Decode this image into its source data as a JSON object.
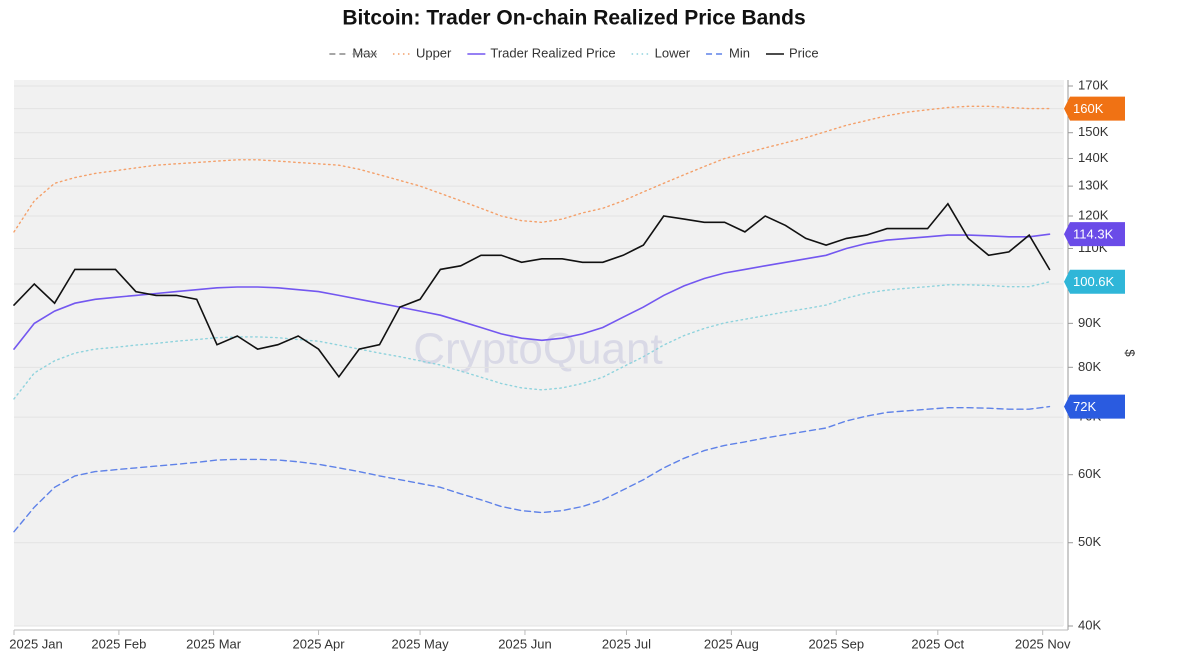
{
  "chart_data": {
    "type": "line",
    "title": "Bitcoin: Trader On-chain Realized Price Bands",
    "watermark": "CryptoQuant",
    "y_label": "$",
    "log_y": true,
    "grid": true,
    "x": [
      0,
      6,
      12,
      18,
      24,
      30,
      36,
      42,
      48,
      54,
      60,
      66,
      72,
      78,
      84,
      90,
      96,
      102,
      108,
      114,
      120,
      126,
      132,
      138,
      144,
      150,
      156,
      162,
      168,
      174,
      180,
      186,
      192,
      198,
      204,
      210,
      216,
      222,
      228,
      234,
      240,
      246,
      252,
      258,
      264,
      270,
      276,
      282,
      288,
      294,
      300,
      306
    ],
    "xlim": [
      0,
      310
    ],
    "xticks": [
      {
        "value": 0,
        "label": "2025 Jan"
      },
      {
        "value": 31,
        "label": "2025 Feb"
      },
      {
        "value": 59,
        "label": "2025 Mar"
      },
      {
        "value": 90,
        "label": "2025 Apr"
      },
      {
        "value": 120,
        "label": "2025 May"
      },
      {
        "value": 151,
        "label": "2025 Jun"
      },
      {
        "value": 181,
        "label": "2025 Jul"
      },
      {
        "value": 212,
        "label": "2025 Aug"
      },
      {
        "value": 243,
        "label": "2025 Sep"
      },
      {
        "value": 273,
        "label": "2025 Oct"
      },
      {
        "value": 304,
        "label": "2025 Nov"
      }
    ],
    "ylim": [
      40000,
      170000
    ],
    "yticks": [
      {
        "value": 40000,
        "label": "40K"
      },
      {
        "value": 50000,
        "label": "50K"
      },
      {
        "value": 60000,
        "label": "60K"
      },
      {
        "value": 70000,
        "label": "70K"
      },
      {
        "value": 80000,
        "label": "80K"
      },
      {
        "value": 90000,
        "label": "90K"
      },
      {
        "value": 100000,
        "label": "100K"
      },
      {
        "value": 110000,
        "label": "110K"
      },
      {
        "value": 120000,
        "label": "120K"
      },
      {
        "value": 130000,
        "label": "130K"
      },
      {
        "value": 140000,
        "label": "140K"
      },
      {
        "value": 150000,
        "label": "150K"
      },
      {
        "value": 160000,
        "label": "160K"
      },
      {
        "value": 170000,
        "label": "170K"
      }
    ],
    "series": [
      {
        "name": "Max",
        "color": "#888888",
        "dash": "dashed",
        "hidden": true
      },
      {
        "name": "Upper",
        "color": "#f4a06a",
        "dash": "dotted",
        "badge_color": "#f07214",
        "values": [
          115000,
          125000,
          131000,
          133000,
          134500,
          135500,
          136500,
          137500,
          138000,
          138500,
          139000,
          139500,
          139500,
          139000,
          138500,
          138000,
          137500,
          136000,
          134000,
          132000,
          130000,
          127500,
          125000,
          122500,
          120000,
          118500,
          118000,
          119000,
          121000,
          122500,
          125000,
          128000,
          131000,
          134000,
          137000,
          140000,
          142000,
          144000,
          146000,
          148000,
          150500,
          153000,
          155000,
          157000,
          158500,
          159500,
          160500,
          161000,
          161000,
          160500,
          160000,
          160000
        ],
        "value_labels": [
          null,
          null,
          null,
          null,
          null,
          null,
          null,
          null,
          null,
          null,
          null,
          null,
          null,
          null,
          null,
          null,
          null,
          null,
          null,
          null,
          null,
          null,
          null,
          null,
          null,
          null,
          null,
          null,
          null,
          null,
          null,
          null,
          null,
          null,
          null,
          null,
          null,
          null,
          null,
          null,
          null,
          null,
          null,
          null,
          null,
          null,
          null,
          null,
          null,
          null,
          null,
          "160K"
        ]
      },
      {
        "name": "Trader Realized Price",
        "color": "#7357f0",
        "dash": "solid",
        "badge_color": "#6a4be8",
        "values": [
          84000,
          90000,
          93000,
          95000,
          96000,
          96500,
          97000,
          97500,
          98000,
          98500,
          99000,
          99200,
          99200,
          99000,
          98500,
          98000,
          97000,
          96000,
          95000,
          94000,
          93000,
          92000,
          90500,
          89000,
          87500,
          86500,
          86000,
          86500,
          87500,
          89000,
          91500,
          94000,
          97000,
          99500,
          101500,
          103000,
          104000,
          105000,
          106000,
          107000,
          108000,
          110000,
          111500,
          112500,
          113000,
          113500,
          114000,
          114000,
          113800,
          113500,
          113500,
          114300
        ],
        "value_labels": [
          null,
          null,
          null,
          null,
          null,
          null,
          null,
          null,
          null,
          null,
          null,
          null,
          null,
          null,
          null,
          null,
          null,
          null,
          null,
          null,
          null,
          null,
          null,
          null,
          null,
          null,
          null,
          null,
          null,
          null,
          null,
          null,
          null,
          null,
          null,
          null,
          null,
          null,
          null,
          null,
          null,
          null,
          null,
          null,
          null,
          null,
          null,
          null,
          null,
          null,
          null,
          "114.3K"
        ]
      },
      {
        "name": "Lower",
        "color": "#8fd3dd",
        "dash": "dotted",
        "badge_color": "#2fb6d8",
        "values": [
          73500,
          78800,
          81400,
          83100,
          84000,
          84400,
          84900,
          85300,
          85800,
          86200,
          86600,
          86800,
          86800,
          86600,
          86200,
          85800,
          84900,
          84000,
          83100,
          82300,
          81400,
          80500,
          79200,
          77900,
          76600,
          75700,
          75300,
          75700,
          76600,
          77900,
          80100,
          82300,
          84900,
          87100,
          88800,
          90100,
          91000,
          91900,
          92800,
          93600,
          94500,
          96300,
          97600,
          98400,
          98900,
          99300,
          99800,
          99800,
          99600,
          99300,
          99300,
          100600
        ],
        "value_labels": [
          null,
          null,
          null,
          null,
          null,
          null,
          null,
          null,
          null,
          null,
          null,
          null,
          null,
          null,
          null,
          null,
          null,
          null,
          null,
          null,
          null,
          null,
          null,
          null,
          null,
          null,
          null,
          null,
          null,
          null,
          null,
          null,
          null,
          null,
          null,
          null,
          null,
          null,
          null,
          null,
          null,
          null,
          null,
          null,
          null,
          null,
          null,
          null,
          null,
          null,
          null,
          "100.6K"
        ]
      },
      {
        "name": "Min",
        "color": "#5f82e8",
        "dash": "dashed",
        "badge_color": "#2a5be0",
        "values": [
          51500,
          55000,
          58000,
          59800,
          60500,
          60800,
          61100,
          61400,
          61700,
          62000,
          62400,
          62500,
          62500,
          62400,
          62100,
          61700,
          61100,
          60500,
          59800,
          59200,
          58600,
          58000,
          57000,
          56100,
          55100,
          54500,
          54200,
          54500,
          55100,
          56100,
          57600,
          59200,
          61100,
          62700,
          64000,
          64900,
          65500,
          66200,
          66800,
          67400,
          68000,
          69300,
          70200,
          70900,
          71200,
          71500,
          71800,
          71800,
          71700,
          71500,
          71500,
          72000
        ],
        "value_labels": [
          null,
          null,
          null,
          null,
          null,
          null,
          null,
          null,
          null,
          null,
          null,
          null,
          null,
          null,
          null,
          null,
          null,
          null,
          null,
          null,
          null,
          null,
          null,
          null,
          null,
          null,
          null,
          null,
          null,
          null,
          null,
          null,
          null,
          null,
          null,
          null,
          null,
          null,
          null,
          null,
          null,
          null,
          null,
          null,
          null,
          null,
          null,
          null,
          null,
          null,
          null,
          "72K"
        ]
      },
      {
        "name": "Price",
        "color": "#111111",
        "dash": "solid",
        "values": [
          94500,
          100000,
          95000,
          104000,
          104000,
          104000,
          98000,
          97000,
          97000,
          96000,
          85000,
          87000,
          84000,
          85000,
          87000,
          84000,
          78000,
          84000,
          85000,
          94000,
          96000,
          104000,
          105000,
          108000,
          108000,
          106000,
          107000,
          107000,
          106000,
          106000,
          108000,
          111000,
          120000,
          119000,
          118000,
          118000,
          115000,
          120000,
          117000,
          113000,
          111000,
          113000,
          114000,
          116000,
          116000,
          116000,
          124000,
          113000,
          108000,
          109000,
          114000,
          104000
        ]
      }
    ]
  }
}
